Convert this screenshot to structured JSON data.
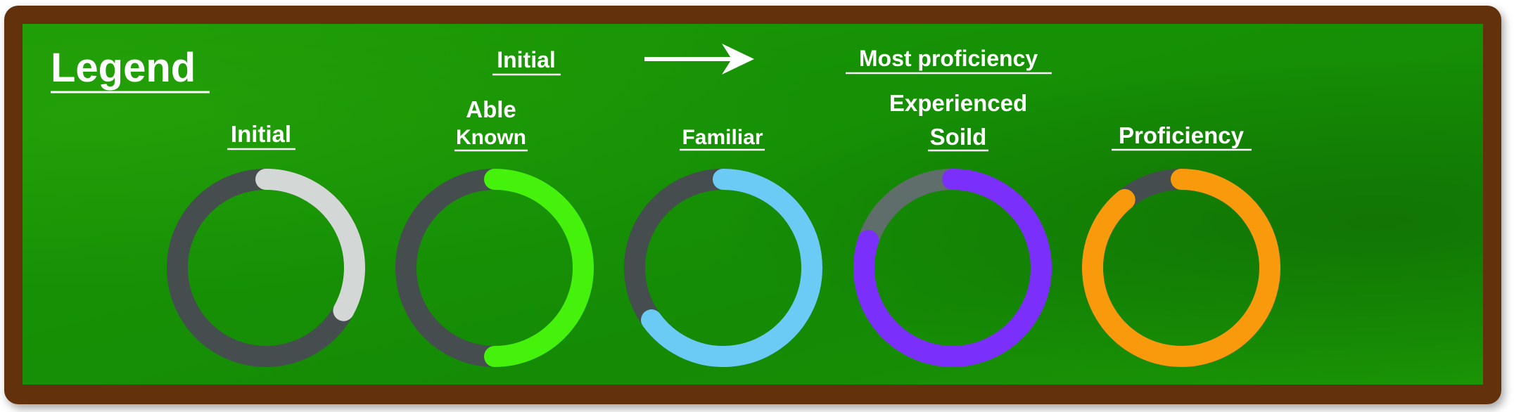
{
  "legend": {
    "title": "Legend",
    "scale_start": "Initial",
    "scale_end": "Most proficiency"
  },
  "levels": [
    {
      "labels": [
        "Initial"
      ],
      "fill_fraction": 0.33,
      "color": "#d3d8d6",
      "track_color": "#454d4e"
    },
    {
      "labels": [
        "Able",
        "Known"
      ],
      "fill_fraction": 0.5,
      "color": "#44f20b",
      "track_color": "#454d4e"
    },
    {
      "labels": [
        "Familiar"
      ],
      "fill_fraction": 0.65,
      "color": "#6ccbf4",
      "track_color": "#454d4e"
    },
    {
      "labels": [
        "Experienced",
        "Soild"
      ],
      "fill_fraction": 0.8,
      "color": "#7a2ffa",
      "track_color": "#5f6d6b"
    },
    {
      "labels": [
        "Proficiency"
      ],
      "fill_fraction": 0.89,
      "color": "#f89a0b",
      "track_color": "#454d4e"
    }
  ],
  "colors": {
    "frame": "#63300a",
    "board_light": "#1c9a05",
    "board_dark": "#117205",
    "text": "#ffffff"
  }
}
